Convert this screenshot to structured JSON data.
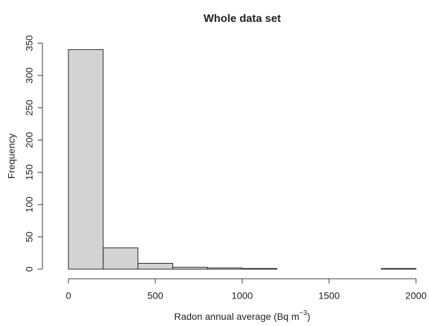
{
  "chart_data": {
    "type": "histogram",
    "title": "Whole data set",
    "xlabel": {
      "text": "Radon annual average (Bq m",
      "superscript": "−3",
      "suffix": ")"
    },
    "ylabel": "Frequency",
    "bins": [
      0,
      200,
      400,
      600,
      800,
      1000,
      1200,
      1400,
      1600,
      1800,
      2000
    ],
    "counts": [
      340,
      33,
      9,
      3,
      2,
      1,
      0,
      0,
      0,
      1
    ],
    "color": "#d3d3d3",
    "xlim": [
      0,
      2000
    ],
    "xticks": [
      0,
      500,
      1000,
      1500,
      2000
    ],
    "ylim": [
      0,
      350
    ],
    "yticks": [
      0,
      50,
      100,
      150,
      200,
      250,
      300,
      350
    ]
  }
}
